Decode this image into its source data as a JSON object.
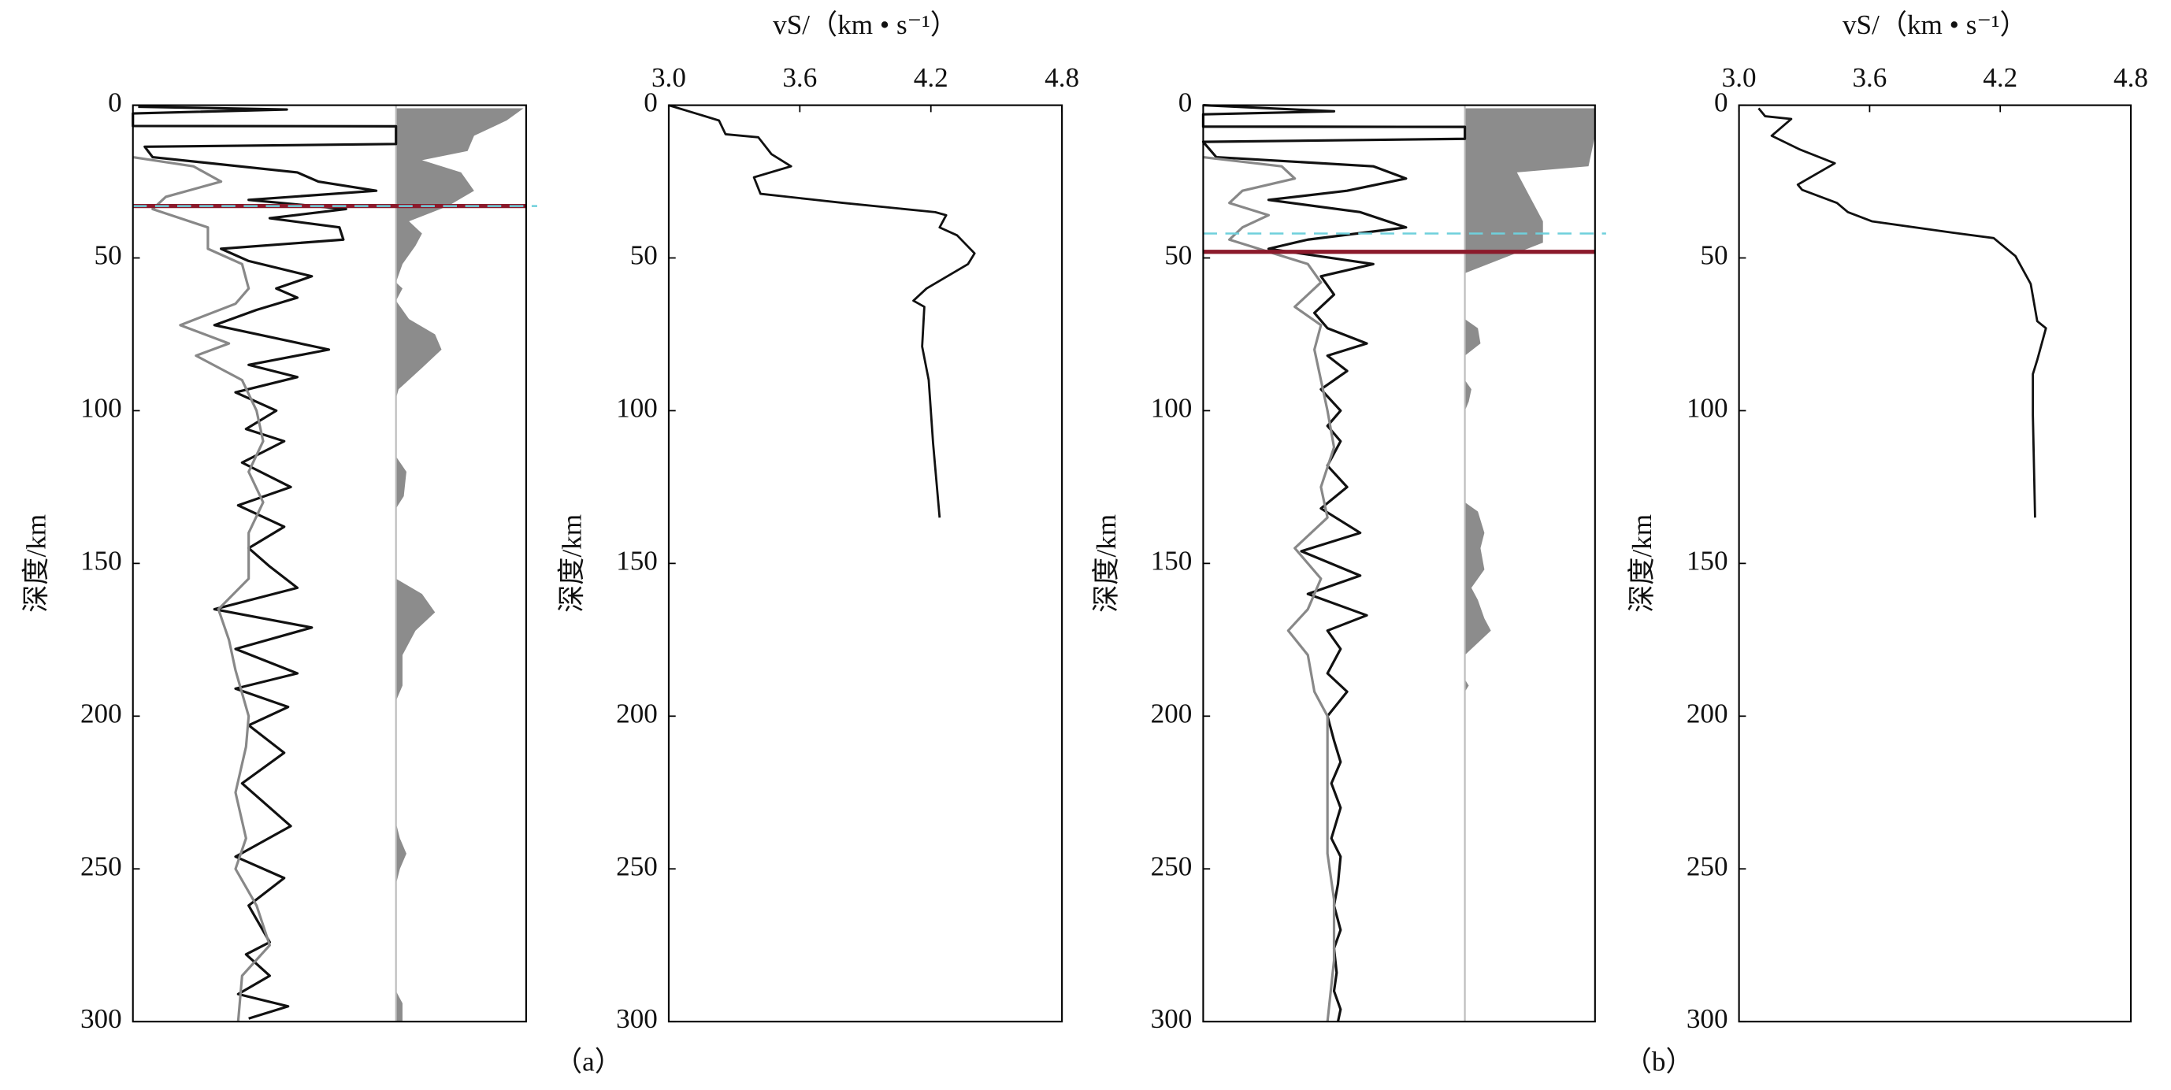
{
  "chart_data": [
    {
      "type": "rf",
      "ylabel": "深度/km",
      "ylim": [
        0,
        300
      ],
      "yticks": [
        0,
        50,
        100,
        150,
        200,
        250,
        300
      ],
      "xlim": [
        -1,
        1
      ],
      "fill_xlim": [
        0,
        1
      ],
      "traces": [
        {
          "color": "#111111",
          "x": [
            0.5,
            1.4,
            2.7,
            6.8,
            6.9,
            12.7,
            13.6,
            17,
            22,
            25,
            28,
            31,
            34,
            37,
            40,
            44,
            47,
            51,
            56,
            60,
            63,
            67,
            72,
            80,
            85,
            89,
            94,
            100,
            106,
            110,
            117,
            125,
            131,
            138,
            145,
            151,
            158,
            165,
            171,
            178,
            186,
            191,
            197,
            203,
            212,
            222,
            236,
            246,
            253,
            262,
            274,
            278,
            285,
            291,
            295,
            299
          ],
          "values": [
            -0.96,
            0.17,
            -1,
            -1,
            1,
            1,
            -0.91,
            -0.85,
            0.25,
            0.41,
            0.85,
            -0.12,
            0.62,
            0.04,
            0.57,
            0.6,
            -0.33,
            -0.12,
            0.36,
            0.09,
            0.25,
            -0.06,
            -0.38,
            0.49,
            -0.12,
            0.25,
            -0.22,
            0.09,
            -0.14,
            0.15,
            -0.17,
            0.2,
            -0.2,
            0.15,
            -0.12,
            0.04,
            0.25,
            -0.38,
            0.36,
            -0.22,
            0.25,
            -0.22,
            0.18,
            -0.12,
            0.15,
            -0.17,
            0.2,
            -0.22,
            0.15,
            -0.12,
            0.04,
            -0.14,
            0.04,
            -0.2,
            0.18,
            -0.12
          ]
        },
        {
          "color": "#888888",
          "x": [
            17,
            20,
            25,
            30,
            34,
            40,
            47,
            52,
            60,
            65,
            72,
            78,
            82,
            90,
            100,
            110,
            120,
            130,
            140,
            155,
            165,
            175,
            185,
            200,
            210,
            225,
            240,
            250,
            262,
            275,
            285,
            300
          ],
          "values": [
            -1,
            -0.54,
            -0.33,
            -0.75,
            -0.85,
            -0.43,
            -0.43,
            -0.17,
            -0.12,
            -0.22,
            -0.64,
            -0.27,
            -0.52,
            -0.17,
            -0.06,
            -0.01,
            -0.12,
            -0.01,
            -0.12,
            -0.12,
            -0.35,
            -0.27,
            -0.22,
            -0.12,
            -0.14,
            -0.22,
            -0.14,
            -0.22,
            -0.06,
            0.04,
            -0.17,
            -0.2
          ]
        }
      ],
      "fill": {
        "color": "#8c8c8c",
        "x": [
          1,
          5,
          10,
          15,
          18,
          22,
          28,
          33,
          38,
          42,
          46,
          52,
          58,
          60,
          64,
          70,
          75,
          80,
          86,
          93,
          96,
          115,
          120,
          128,
          132,
          155,
          160,
          166,
          172,
          180,
          190,
          195,
          235,
          240,
          245,
          250,
          255,
          290,
          294,
          300
        ],
        "values": [
          0.98,
          0.85,
          0.6,
          0.55,
          0.2,
          0.5,
          0.6,
          0.4,
          0.1,
          0.2,
          0.15,
          0.05,
          0,
          0.05,
          0,
          0.1,
          0.3,
          0.35,
          0.2,
          0.02,
          0,
          0,
          0.08,
          0.06,
          0,
          0,
          0.2,
          0.3,
          0.15,
          0.05,
          0.05,
          0,
          0,
          0.03,
          0.08,
          0.03,
          0,
          0,
          0.05,
          0.05
        ]
      },
      "hlines": [
        {
          "value": 33,
          "color": "#8b1a2b",
          "dashed": false
        },
        {
          "value": 33,
          "color": "#6fd0dc",
          "dashed": true
        }
      ]
    },
    {
      "type": "line",
      "xlabel": "vS/（km • s⁻¹）",
      "ylabel": "深度/km",
      "caption": "（a）",
      "color": "#111111",
      "xlim": [
        3,
        4.8
      ],
      "xticks": [
        {
          "value": 3,
          "label": "3.0"
        },
        3.6,
        4.2,
        4.8
      ],
      "ylim": [
        0,
        300
      ],
      "yticks": [
        0,
        50,
        100,
        150,
        200,
        250,
        300
      ],
      "x": [
        0,
        5,
        9.5,
        10.5,
        16,
        20,
        23.6,
        29,
        32,
        35,
        36,
        40,
        42.6,
        48.5,
        52,
        60,
        64,
        66,
        79,
        90,
        110.6,
        135
      ],
      "values": [
        3.0,
        3.23,
        3.26,
        3.41,
        3.47,
        3.56,
        3.39,
        3.42,
        3.8,
        4.22,
        4.27,
        4.24,
        4.32,
        4.4,
        4.37,
        4.18,
        4.12,
        4.17,
        4.16,
        4.19,
        4.21,
        4.24
      ]
    },
    {
      "type": "rf",
      "ylabel": "深度/km",
      "ylim": [
        0,
        300
      ],
      "yticks": [
        0,
        50,
        100,
        150,
        200,
        250,
        300
      ],
      "xlim": [
        -1,
        1
      ],
      "fill_xlim": [
        0,
        1
      ],
      "traces": [
        {
          "color": "#111111",
          "x": [
            0,
            2,
            3,
            7,
            7.1,
            11,
            12,
            17,
            20,
            24,
            28,
            31,
            35,
            40,
            44,
            47,
            52,
            56,
            62,
            68,
            73,
            78,
            82,
            87,
            93,
            100,
            105,
            110,
            118,
            125,
            132,
            140,
            146,
            154,
            160,
            167,
            172,
            178,
            186,
            192,
            200,
            208,
            215,
            222,
            230,
            240,
            246,
            255,
            262,
            270,
            276,
            284,
            290,
            296,
            300
          ],
          "values": [
            -1,
            0,
            -1,
            -1,
            1,
            1,
            -1,
            -0.9,
            0.3,
            0.55,
            0.1,
            -0.5,
            0.2,
            0.55,
            -0.2,
            -0.5,
            0.3,
            -0.1,
            0,
            -0.15,
            -0.05,
            0.25,
            -0.05,
            0.1,
            -0.1,
            0.05,
            -0.05,
            0.05,
            -0.05,
            0.1,
            -0.1,
            0.2,
            -0.25,
            0.2,
            -0.2,
            0.25,
            -0.05,
            0.05,
            -0.05,
            0.1,
            -0.05,
            0,
            0.05,
            -0.02,
            0.05,
            -0.02,
            0.05,
            0.03,
            0,
            0.05,
            0,
            0.02,
            0,
            0.05,
            0.03
          ]
        },
        {
          "color": "#888888",
          "x": [
            17,
            20,
            24,
            28,
            32,
            36,
            40,
            44,
            48,
            52,
            58,
            66,
            72,
            80,
            90,
            100,
            112,
            125,
            135,
            145,
            155,
            165,
            172,
            180,
            192,
            200,
            215,
            230,
            245,
            260,
            280,
            300
          ],
          "values": [
            -1,
            -0.4,
            -0.3,
            -0.7,
            -0.8,
            -0.5,
            -0.7,
            -0.8,
            -0.5,
            -0.2,
            -0.1,
            -0.3,
            -0.1,
            -0.15,
            -0.1,
            -0.05,
            0,
            -0.1,
            -0.05,
            -0.3,
            -0.1,
            -0.2,
            -0.35,
            -0.2,
            -0.15,
            -0.05,
            -0.05,
            -0.05,
            -0.05,
            0,
            0,
            -0.05
          ]
        }
      ],
      "fill": {
        "color": "#8c8c8c",
        "x": [
          1,
          10,
          20,
          22,
          30,
          38,
          45,
          50,
          55,
          70,
          73,
          78,
          82,
          90,
          93,
          97,
          100,
          130,
          133,
          140,
          145,
          152,
          158,
          162,
          168,
          172,
          176,
          180,
          188,
          190,
          192,
          300
        ],
        "values": [
          1,
          1,
          0.95,
          0.4,
          0.5,
          0.6,
          0.6,
          0.3,
          0,
          0,
          0.1,
          0.12,
          0,
          0,
          0.05,
          0.03,
          0,
          0,
          0.1,
          0.15,
          0.12,
          0.15,
          0.05,
          0.1,
          0.15,
          0.2,
          0.1,
          0,
          0,
          0.03,
          0,
          0
        ]
      },
      "hlines": [
        {
          "value": 42,
          "color": "#6fd0dc",
          "dashed": true
        },
        {
          "value": 48,
          "color": "#8b1a2b",
          "dashed": false
        }
      ]
    },
    {
      "type": "line",
      "xlabel": "vS/（km • s⁻¹）",
      "ylabel": "深度/km",
      "caption": "（b）",
      "color": "#111111",
      "xlim": [
        3,
        4.8
      ],
      "xticks": [
        {
          "value": 3,
          "label": "3.0"
        },
        3.6,
        4.2,
        4.8
      ],
      "ylim": [
        0,
        300
      ],
      "yticks": [
        0,
        50,
        100,
        150,
        200,
        250,
        300
      ],
      "x": [
        1,
        3.6,
        4.5,
        10,
        14.5,
        19,
        26,
        27.7,
        32,
        35,
        38,
        41.7,
        43.5,
        49.4,
        58.5,
        70.7,
        73,
        83.4,
        88,
        101.5,
        135
      ],
      "values": [
        3.09,
        3.12,
        3.24,
        3.15,
        3.28,
        3.44,
        3.27,
        3.29,
        3.45,
        3.5,
        3.61,
        3.98,
        4.17,
        4.27,
        4.34,
        4.37,
        4.41,
        4.37,
        4.35,
        4.35,
        4.36
      ]
    }
  ]
}
